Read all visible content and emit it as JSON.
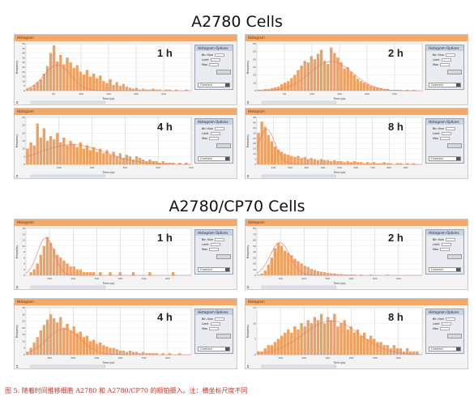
{
  "sections": {
    "top_title": "A2780  Cells",
    "bottom_title": "A2780/CP70  Cells"
  },
  "panel_header_label": "Histogram",
  "options": {
    "title": "Histogram Options",
    "bin_size_label": "Bin Size",
    "limit_label": "Limit",
    "max_label": "Max",
    "select_label": "Overlaid"
  },
  "axis": {
    "xlabel": "Time (ps)",
    "ylabel": "Frequency"
  },
  "caption": "图 5. 随着时间推移细胞 A2780 和 A2780/CP70 的顺铂摄入。注：横坐标尺度不同",
  "colors": {
    "bar": "#f0a060",
    "bar_edge": "#e08840",
    "curve": "#e07a6a",
    "header": "#f4a96a",
    "plot_bg": "#ffffff"
  },
  "chart_data": [
    {
      "type": "bar",
      "cell": "A2780",
      "time": "1 h",
      "xlim": [
        0,
        300
      ],
      "ylim": [
        0,
        50
      ],
      "x_ticks": [
        50,
        100,
        150,
        200,
        250
      ],
      "y_ticks": [
        0,
        5,
        10,
        15,
        20,
        25,
        30,
        35,
        40,
        45,
        50
      ],
      "values": [
        2,
        3,
        6,
        9,
        12,
        18,
        26,
        40,
        48,
        31,
        38,
        28,
        35,
        30,
        24,
        27,
        20,
        17,
        22,
        15,
        18,
        13,
        16,
        10,
        8,
        12,
        6,
        9,
        5,
        7,
        4,
        3,
        2,
        3,
        1,
        2,
        1,
        1,
        2,
        1,
        1,
        0,
        1,
        1,
        0,
        1,
        0,
        0,
        1,
        0
      ],
      "curve_peak": 0.55,
      "curve_mu": 0.19,
      "curve_sd": 0.08
    },
    {
      "type": "bar",
      "cell": "A2780",
      "time": "2 h",
      "xlim": [
        0,
        300
      ],
      "ylim": [
        0,
        60
      ],
      "x_ticks": [
        50,
        100,
        150,
        200,
        250
      ],
      "y_ticks": [
        0,
        10,
        20,
        30,
        40,
        50,
        60
      ],
      "values": [
        1,
        1,
        2,
        2,
        3,
        4,
        5,
        8,
        10,
        12,
        16,
        20,
        26,
        32,
        38,
        36,
        44,
        40,
        47,
        52,
        38,
        34,
        55,
        48,
        42,
        36,
        28,
        30,
        24,
        20,
        15,
        12,
        10,
        8,
        6,
        5,
        4,
        3,
        2,
        2,
        1,
        1,
        1,
        1,
        0,
        1,
        0,
        1,
        0,
        0
      ],
      "curve_peak": 0.62,
      "curve_mu": 0.45,
      "curve_sd": 0.13
    },
    {
      "type": "bar",
      "cell": "A2780",
      "time": "4 h",
      "xlim": [
        0,
        500
      ],
      "ylim": [
        0,
        30
      ],
      "x_ticks": [
        100,
        200,
        300,
        400,
        500
      ],
      "y_ticks": [
        0,
        5,
        10,
        15,
        20,
        25,
        30
      ],
      "values": [
        10,
        14,
        12,
        26,
        17,
        23,
        15,
        18,
        16,
        20,
        14,
        17,
        12,
        15,
        13,
        11,
        14,
        10,
        12,
        9,
        11,
        8,
        10,
        7,
        9,
        6,
        8,
        5,
        7,
        4,
        6,
        5,
        3,
        5,
        4,
        3,
        2,
        3,
        2,
        2,
        1,
        2,
        1,
        1,
        1,
        0,
        1,
        0,
        1,
        0
      ],
      "curve_peak": 0.42,
      "curve_mu": 0.28,
      "curve_sd": 0.2
    },
    {
      "type": "bar",
      "cell": "A2780",
      "time": "8 h",
      "xlim": [
        0,
        1000
      ],
      "ylim": [
        0,
        45
      ],
      "x_ticks": [
        100,
        200,
        300,
        400,
        500,
        600,
        700,
        800,
        900
      ],
      "y_ticks": [
        0,
        5,
        10,
        15,
        20,
        25,
        30,
        35,
        40,
        45
      ],
      "values": [
        30,
        41,
        36,
        28,
        22,
        17,
        14,
        12,
        10,
        9,
        8,
        7,
        8,
        6,
        7,
        5,
        6,
        5,
        4,
        5,
        4,
        4,
        3,
        4,
        3,
        3,
        2,
        3,
        2,
        3,
        2,
        2,
        1,
        2,
        1,
        2,
        1,
        1,
        2,
        1,
        1,
        0,
        1,
        1,
        0,
        1,
        0,
        1,
        0,
        0
      ],
      "curve_peak": 0.75,
      "curve_mu": 0.06,
      "curve_sd": 0.05
    },
    {
      "type": "bar",
      "cell": "A2780/CP70",
      "time": "1 h",
      "xlim": [
        0,
        700
      ],
      "ylim": [
        0,
        16
      ],
      "x_ticks": [
        100,
        200,
        300,
        400,
        500,
        600
      ],
      "y_ticks": [
        0,
        2,
        4,
        6,
        8,
        10,
        12,
        14,
        16
      ],
      "values": [
        0,
        1,
        2,
        4,
        7,
        10,
        13,
        11,
        9,
        7,
        6,
        5,
        4,
        3,
        3,
        2,
        2,
        1,
        1,
        1,
        1,
        0,
        1,
        0,
        0,
        1,
        0,
        0,
        1,
        0,
        0,
        0,
        1,
        0,
        0,
        0,
        0,
        1,
        0,
        0,
        0,
        0,
        0,
        0,
        1,
        0,
        0,
        0,
        0,
        0
      ],
      "curve_peak": 0.8,
      "curve_mu": 0.12,
      "curve_sd": 0.05
    },
    {
      "type": "bar",
      "cell": "A2780/CP70",
      "time": "2 h",
      "xlim": [
        0,
        700
      ],
      "ylim": [
        0,
        80
      ],
      "x_ticks": [
        100,
        200,
        300,
        400,
        500,
        600
      ],
      "y_ticks": [
        0,
        10,
        20,
        30,
        40,
        50,
        60,
        70,
        80
      ],
      "values": [
        1,
        3,
        8,
        18,
        30,
        46,
        55,
        50,
        42,
        38,
        34,
        28,
        24,
        20,
        16,
        14,
        11,
        9,
        7,
        6,
        5,
        4,
        3,
        3,
        2,
        2,
        1,
        1,
        1,
        1,
        0,
        1,
        0,
        0,
        1,
        0,
        0,
        0,
        0,
        1,
        0,
        0,
        0,
        0,
        0,
        0,
        0,
        0,
        0,
        0
      ],
      "curve_peak": 0.7,
      "curve_mu": 0.14,
      "curve_sd": 0.06
    },
    {
      "type": "bar",
      "cell": "A2780/CP70",
      "time": "4 h",
      "xlim": [
        0,
        700
      ],
      "ylim": [
        0,
        35
      ],
      "x_ticks": [
        100,
        200,
        300,
        400,
        500,
        600
      ],
      "y_ticks": [
        0,
        5,
        10,
        15,
        20,
        25,
        30,
        35
      ],
      "values": [
        2,
        5,
        9,
        13,
        18,
        22,
        26,
        30,
        27,
        24,
        28,
        20,
        23,
        18,
        21,
        16,
        17,
        13,
        14,
        10,
        11,
        8,
        9,
        7,
        6,
        5,
        5,
        4,
        3,
        3,
        2,
        3,
        2,
        2,
        1,
        2,
        1,
        1,
        1,
        1,
        0,
        1,
        0,
        1,
        0,
        0,
        1,
        0,
        0,
        0
      ],
      "curve_peak": 0.55,
      "curve_mu": 0.23,
      "curve_sd": 0.1
    },
    {
      "type": "bar",
      "cell": "A2780/CP70",
      "time": "8 h",
      "xlim": [
        0,
        700
      ],
      "ylim": [
        0,
        15
      ],
      "x_ticks": [
        100,
        200,
        300,
        400,
        500,
        600
      ],
      "y_ticks": [
        0,
        5,
        10,
        15
      ],
      "values": [
        1,
        1,
        2,
        3,
        3,
        4,
        5,
        6,
        7,
        8,
        7,
        9,
        8,
        10,
        9,
        11,
        10,
        12,
        11,
        13,
        10,
        12,
        11,
        13,
        9,
        10,
        11,
        8,
        9,
        7,
        8,
        6,
        7,
        5,
        6,
        5,
        4,
        4,
        3,
        3,
        2,
        3,
        2,
        2,
        1,
        2,
        1,
        1,
        1,
        0
      ],
      "curve_peak": 0.72,
      "curve_mu": 0.45,
      "curve_sd": 0.17
    }
  ]
}
